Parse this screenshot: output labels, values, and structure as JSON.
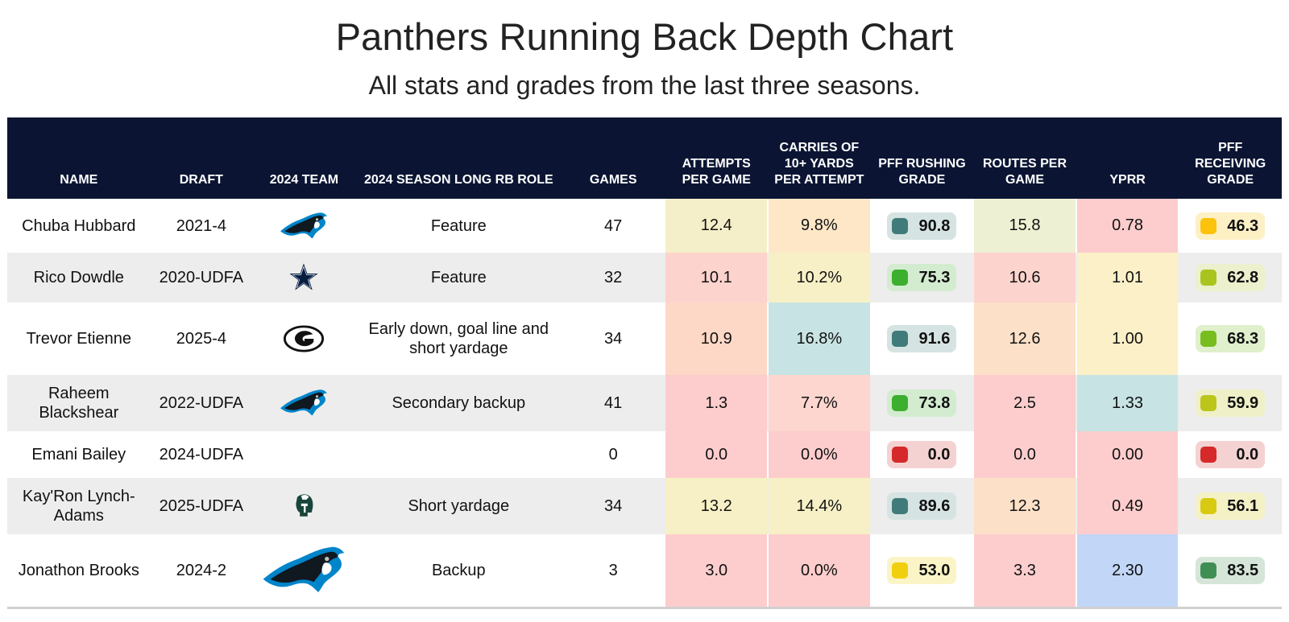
{
  "title": "Panthers Running Back Depth Chart",
  "subtitle": "All stats and grades from the last three seasons.",
  "chart_data": {
    "type": "table",
    "columns": [
      "NAME",
      "DRAFT",
      "2024 TEAM",
      "2024 SEASON LONG RB ROLE",
      "GAMES",
      "ATTEMPTS PER GAME",
      "CARRIES OF 10+ YARDS PER ATTEMPT",
      "PFF RUSHING GRADE",
      "ROUTES PER GAME",
      "YPRR",
      "PFF RECEIVING GRADE"
    ],
    "rows": [
      {
        "name": "Chuba Hubbard",
        "draft": "2021-4",
        "team_logo": "panthers-logo",
        "role": "Feature",
        "games": "47",
        "attempts": "12.4",
        "carries10": "9.8%",
        "rush_grade": "90.8",
        "routes": "15.8",
        "yprr": "0.78",
        "recv_grade": "46.3"
      },
      {
        "name": "Rico Dowdle",
        "draft": "2020-UDFA",
        "team_logo": "cowboys-star-logo",
        "role": "Feature",
        "games": "32",
        "attempts": "10.1",
        "carries10": "10.2%",
        "rush_grade": "75.3",
        "routes": "10.6",
        "yprr": "1.01",
        "recv_grade": "62.8"
      },
      {
        "name": "Trevor Etienne",
        "draft": "2025-4",
        "team_logo": "georgia-g-logo",
        "role": "Early down, goal line and short yardage",
        "games": "34",
        "attempts": "10.9",
        "carries10": "16.8%",
        "rush_grade": "91.6",
        "routes": "12.6",
        "yprr": "1.00",
        "recv_grade": "68.3"
      },
      {
        "name": "Raheem Blackshear",
        "draft": "2022-UDFA",
        "team_logo": "panthers-logo",
        "role": "Secondary backup",
        "games": "41",
        "attempts": "1.3",
        "carries10": "7.7%",
        "rush_grade": "73.8",
        "routes": "2.5",
        "yprr": "1.33",
        "recv_grade": "59.9"
      },
      {
        "name": "Emani Bailey",
        "draft": "2024-UDFA",
        "team_logo": "",
        "role": "",
        "games": "0",
        "attempts": "0.0",
        "carries10": "0.0%",
        "rush_grade": "0.0",
        "routes": "0.0",
        "yprr": "0.00",
        "recv_grade": "0.0"
      },
      {
        "name": "Kay'Ron Lynch-Adams",
        "draft": "2025-UDFA",
        "team_logo": "spartan-helmet-logo",
        "role": "Short yardage",
        "games": "34",
        "attempts": "13.2",
        "carries10": "14.4%",
        "rush_grade": "89.6",
        "routes": "12.3",
        "yprr": "0.49",
        "recv_grade": "56.1"
      },
      {
        "name": "Jonathon Brooks",
        "draft": "2024-2",
        "team_logo": "panthers-logo-large",
        "role": "Backup",
        "games": "3",
        "attempts": "3.0",
        "carries10": "0.0%",
        "rush_grade": "53.0",
        "routes": "3.3",
        "yprr": "2.30",
        "recv_grade": "83.5"
      }
    ]
  },
  "colors": {
    "header_bg": "#0b1533",
    "heat_attempts": [
      "#f5efc9",
      "#fdd3cd",
      "#fdd8c6",
      "#fdcdcd",
      "#fdcdcd",
      "#f7f0c6",
      "#fdcdcd"
    ],
    "heat_carries10": [
      "#fde7c7",
      "#f7f0c6",
      "#c8e3e3",
      "#fdd6cf",
      "#fdcdcd",
      "#f7f0c6",
      "#fdcdcd"
    ],
    "heat_routes": [
      "#eef0d3",
      "#fdd3cd",
      "#fde0c8",
      "#fdcdcd",
      "#fdcdcd",
      "#fde0c8",
      "#fdcdcd"
    ],
    "heat_yprr": [
      "#fdcdcd",
      "#fbf0c8",
      "#fbf0c8",
      "#c8e3e3",
      "#fdcdcd",
      "#fdcdcd",
      "#c2d6f7"
    ],
    "rush_sq": [
      "#3f7b7b",
      "#3caf2e",
      "#3f7b7b",
      "#3caf2e",
      "#d62a2a",
      "#3f7b7b",
      "#f0d00e"
    ],
    "rush_bg": [
      "#d6e3e3",
      "#d3ecd0",
      "#d6e3e3",
      "#d3ecd0",
      "#f5d2d2",
      "#d6e3e3",
      "#fbf4c6"
    ],
    "recv_sq": [
      "#fcc20c",
      "#a9c41e",
      "#78bd1e",
      "#bcc51a",
      "#d62a2a",
      "#d8ca12",
      "#3f8f54"
    ],
    "recv_bg": [
      "#fdf0c5",
      "#ecf0cc",
      "#e0efcc",
      "#eff0c8",
      "#f5d2d2",
      "#f4f1c6",
      "#d5e6d8"
    ]
  }
}
